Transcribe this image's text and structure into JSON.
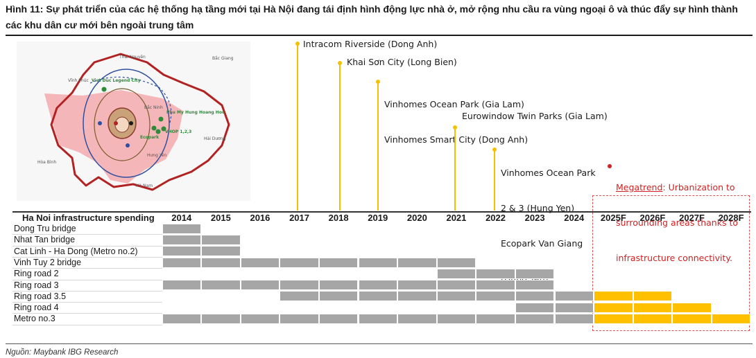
{
  "title": "Hình 11: Sự phát triển của các hệ thống hạ tầng mới tại Hà Nội đang tái định hình động lực nhà ở, mở rộng nhu cầu ra vùng ngoại ô và thúc đẩy sự hình thành các khu dân cư mới bên ngoài trung tâm",
  "source": "Nguồn: Maybank IBG Research",
  "colors": {
    "historical": "#a6a6a6",
    "forecast": "#ffc000",
    "milestone": "#f5c000",
    "megatrend": "#d42020",
    "map_region": "#f4b6b8",
    "map_border": "#b22222"
  },
  "map": {
    "provinces": [
      "Thái Nguyên",
      "Vĩnh Phúc",
      "Bắc Giang",
      "Bắc Ninh",
      "Hải Dương",
      "Hưng Yên",
      "Hòa Bình",
      "Hà Nam"
    ],
    "projects": [
      "Viet Duc Legend City",
      "Phu My Hung Hoang Hoc",
      "Ecopark",
      "VHOP 1,2,3"
    ]
  },
  "milestones": [
    {
      "year": "2017",
      "lines": [
        "Intracom Riverside (Dong Anh)"
      ]
    },
    {
      "year": "2018",
      "lines": [
        "Khai Sơn City (Long Bien)"
      ]
    },
    {
      "year": "2019",
      "lines": [
        "Vinhomes Ocean Park (Gia Lam)",
        "Vinhomes Smart City (Dong Anh)"
      ]
    },
    {
      "year": "2021",
      "lines": [
        "Eurowindow Twin Parks (Gia Lam)"
      ]
    },
    {
      "year": "2022",
      "lines": [
        "Vinhomes Ocean Park",
        "2 & 3 (Hung Yen)",
        "Ecopark Van Giang",
        "(Hung Yen)"
      ]
    }
  ],
  "megatrend": {
    "key": "Megatrend",
    "text_first": ": Urbanization to",
    "lines": [
      "surrounding areas thanks to",
      "infrastructure connectivity."
    ]
  },
  "chart_data": {
    "type": "table",
    "title": "Ha Noi infrastructure spending",
    "categories": [
      "2014",
      "2015",
      "2016",
      "2017",
      "2018",
      "2019",
      "2020",
      "2021",
      "2022",
      "2023",
      "2024",
      "2025F",
      "2026F",
      "2027F",
      "2028F"
    ],
    "forecast_categories": [
      "2025F",
      "2026F",
      "2027F",
      "2028F"
    ],
    "rows": [
      {
        "name": "Dong Tru bridge",
        "years": [
          "2014"
        ]
      },
      {
        "name": "Nhat Tan bridge",
        "years": [
          "2014",
          "2015"
        ]
      },
      {
        "name": "Cat Linh - Ha Dong (Metro no.2)",
        "years": [
          "2014",
          "2015"
        ]
      },
      {
        "name": "Vinh Tuy 2 bridge",
        "years": [
          "2014",
          "2015",
          "2016",
          "2017",
          "2018",
          "2019",
          "2020",
          "2021"
        ]
      },
      {
        "name": "Ring road 2",
        "years": [
          "2021",
          "2022",
          "2023"
        ]
      },
      {
        "name": "Ring road 3",
        "years": [
          "2014",
          "2015",
          "2016",
          "2017",
          "2018",
          "2019",
          "2020",
          "2021",
          "2022",
          "2023"
        ]
      },
      {
        "name": "Ring road 3.5",
        "years": [
          "2017",
          "2018",
          "2019",
          "2020",
          "2021",
          "2022",
          "2023",
          "2024",
          "2025F",
          "2026F"
        ]
      },
      {
        "name": "Ring road 4",
        "years": [
          "2023",
          "2024",
          "2025F",
          "2026F",
          "2027F"
        ]
      },
      {
        "name": "Metro no.3",
        "years": [
          "2014",
          "2015",
          "2016",
          "2017",
          "2018",
          "2019",
          "2020",
          "2021",
          "2022",
          "2023",
          "2024",
          "2025F",
          "2026F",
          "2027F",
          "2028F"
        ]
      }
    ]
  }
}
